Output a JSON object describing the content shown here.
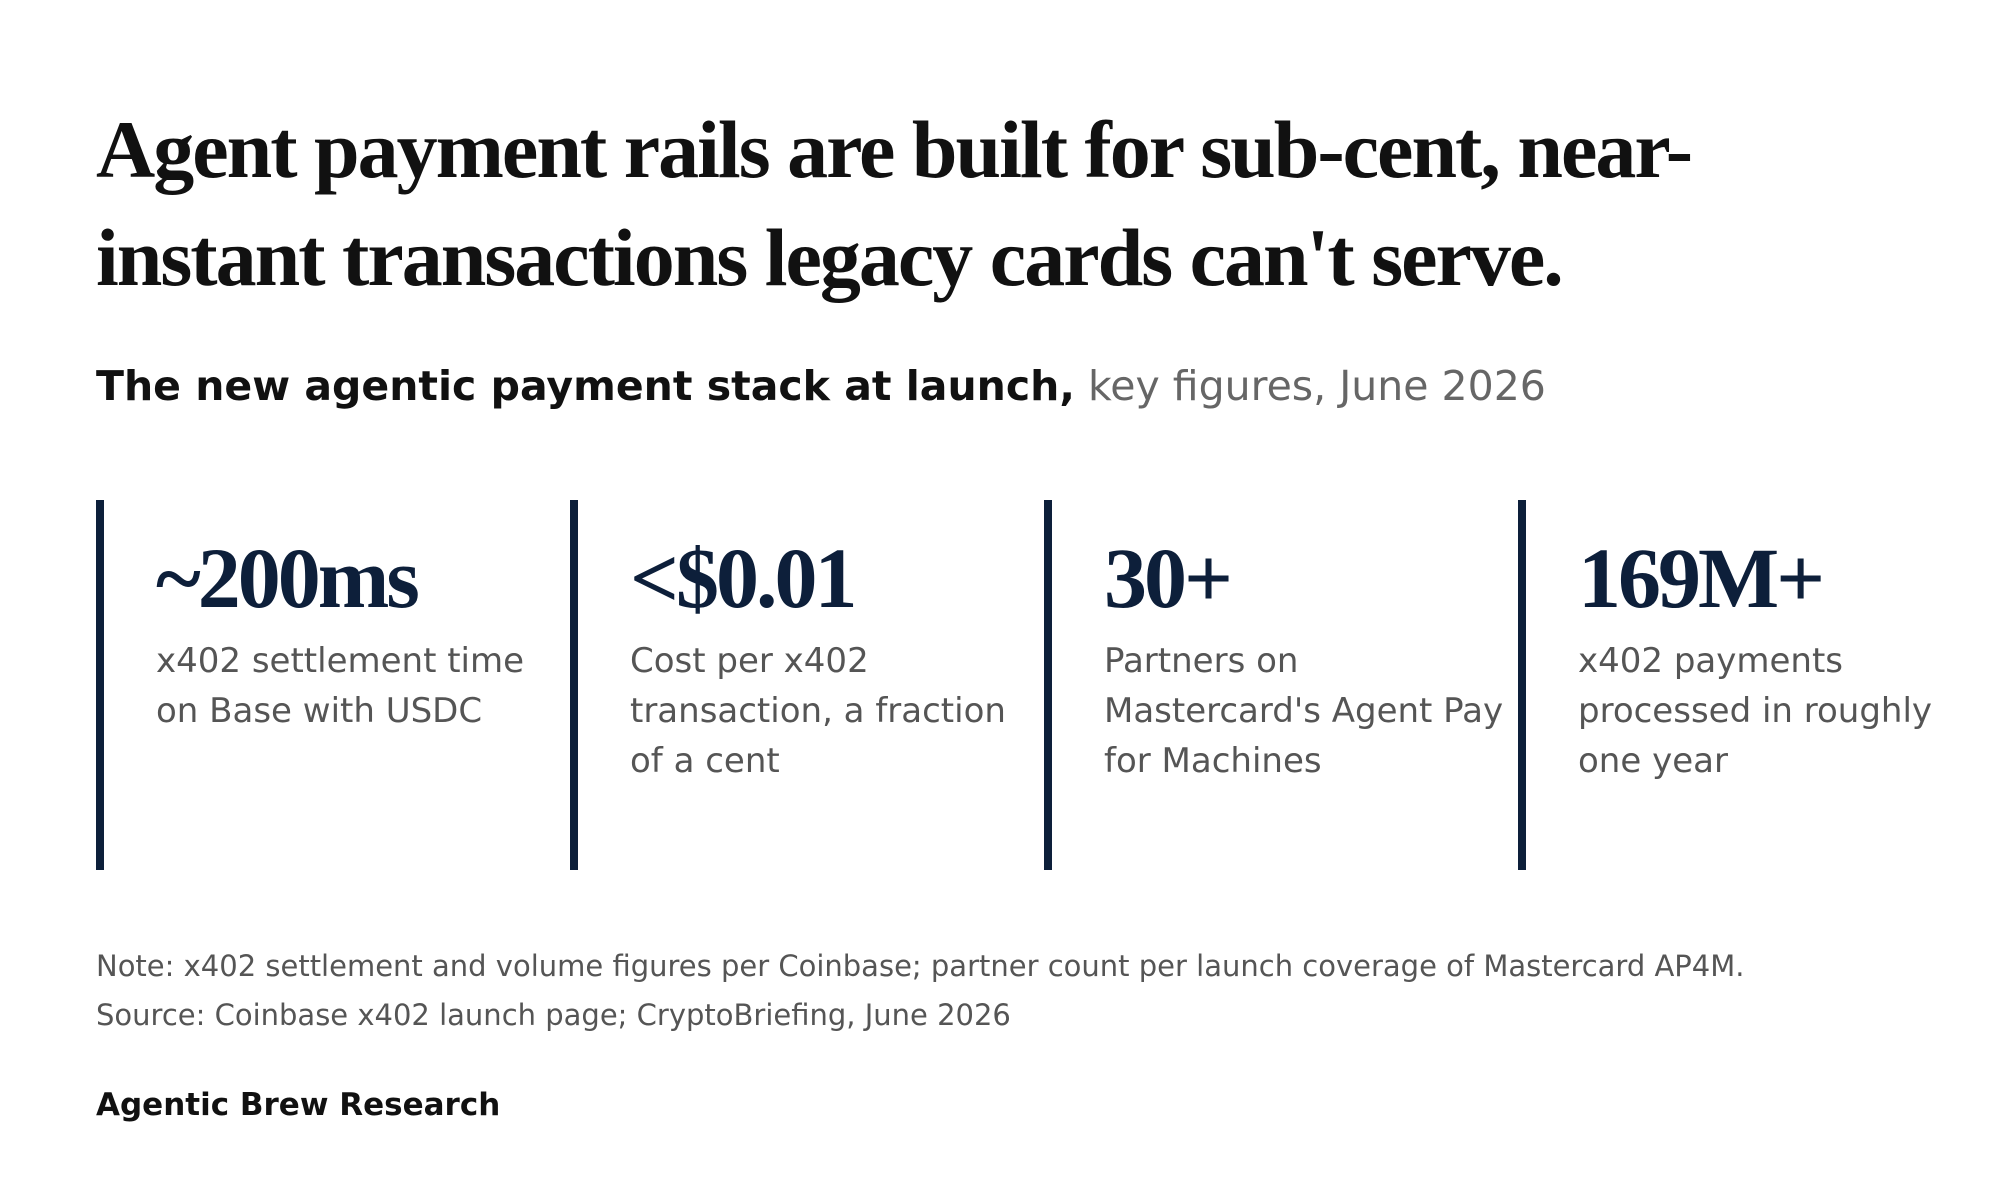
{
  "headline": "Agent payment rails are built for sub-cent, near-instant transactions legacy cards can't serve.",
  "subtitle": {
    "strong": "The new agentic payment stack at launch,",
    "light": "key figures, June 2026"
  },
  "stats": [
    {
      "value": "~200ms",
      "label": "x402 settlement time on Base with USDC"
    },
    {
      "value": "<$0.01",
      "label": "Cost per x402 transaction, a fraction of a cent"
    },
    {
      "value": "30+",
      "label": "Partners on Mastercard's Agent Pay for Machines"
    },
    {
      "value": "169M+",
      "label": "x402 payments processed in roughly one year"
    }
  ],
  "notes": {
    "note": "Note: x402 settlement and volume figures per Coinbase; partner count per launch coverage of Mastercard AP4M.",
    "source": "Source: Coinbase x402 launch page; CryptoBriefing, June 2026"
  },
  "brand": "Agentic Brew Research",
  "colors": {
    "accent": "#0d1f3a",
    "text": "#111111",
    "muted": "#666666"
  }
}
